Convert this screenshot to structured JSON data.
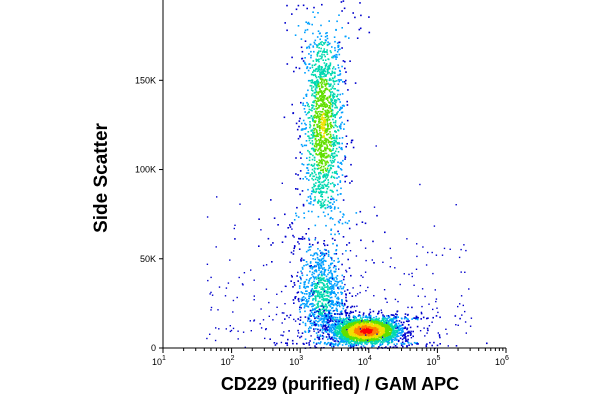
{
  "chart_data": {
    "type": "scatter",
    "subtype": "flow-cytometry-density-dot-plot",
    "xlabel": "CD229 (purified) / GAM APC",
    "ylabel": "Side Scatter",
    "x_scale": "log",
    "xlim": [
      10,
      1000000
    ],
    "ylim": [
      0,
      195000
    ],
    "x_ticks": [
      {
        "base": "10",
        "exp": "1",
        "value": 10
      },
      {
        "base": "10",
        "exp": "2",
        "value": 100
      },
      {
        "base": "10",
        "exp": "3",
        "value": 1000
      },
      {
        "base": "10",
        "exp": "4",
        "value": 10000
      },
      {
        "base": "10",
        "exp": "5",
        "value": 100000
      },
      {
        "base": "10",
        "exp": "6",
        "value": 1000000
      }
    ],
    "y_ticks": [
      {
        "label": "0",
        "value": 0
      },
      {
        "label": "50K",
        "value": 50000
      },
      {
        "label": "100K",
        "value": 100000
      },
      {
        "label": "150K",
        "value": 150000
      }
    ],
    "grid": false,
    "legend": "none",
    "color_scale": [
      "#0000cc",
      "#00a0ff",
      "#00d8b0",
      "#60e000",
      "#f0e000",
      "#ff8000",
      "#ff0000"
    ],
    "populations": [
      {
        "x_center": 2100,
        "y_center": 125000,
        "x_spread_log": 0.15,
        "y_spread": 30000,
        "relative_density": 0.55
      },
      {
        "x_center": 2000,
        "y_center": 30000,
        "x_spread_log": 0.17,
        "y_spread": 15000,
        "relative_density": 0.3
      },
      {
        "x_center": 9000,
        "y_center": 10000,
        "x_spread_log": 0.25,
        "y_spread": 4000,
        "relative_density": 1.0
      }
    ]
  }
}
